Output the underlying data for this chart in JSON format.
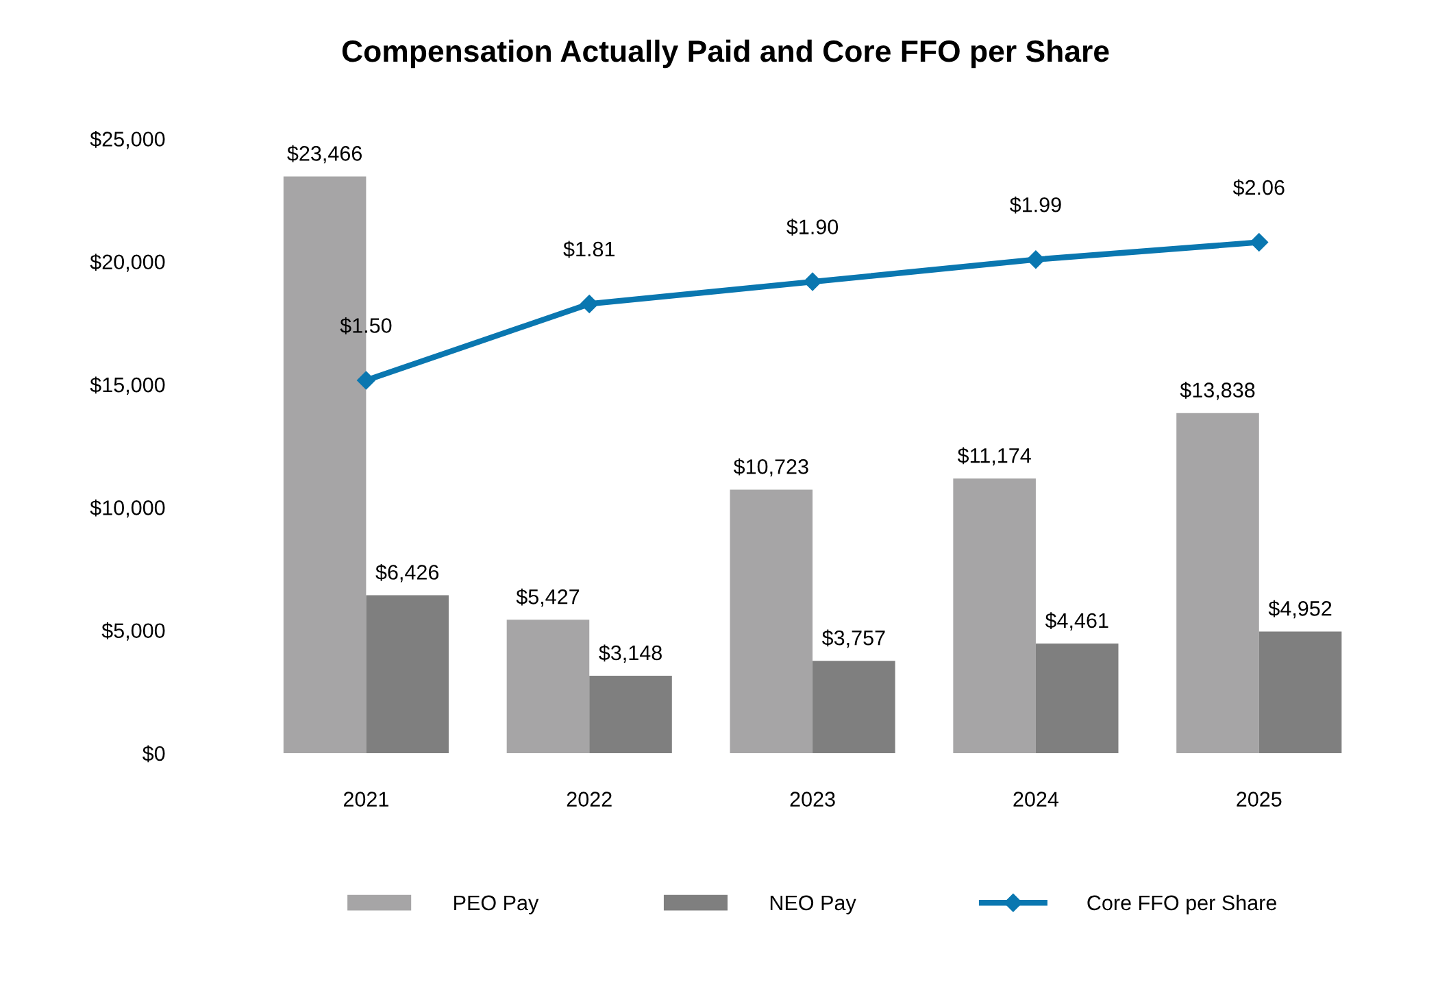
{
  "chart_data": {
    "type": "bar",
    "title": "Compensation Actually Paid and Core FFO per Share",
    "categories": [
      "2021",
      "2022",
      "2023",
      "2024",
      "2025"
    ],
    "series": [
      {
        "name": "PEO Pay",
        "color": "#a6a5a6",
        "values": [
          23466,
          5427,
          10723,
          11174,
          13838
        ],
        "value_labels": [
          "$23,466",
          "$5,427",
          "$10,723",
          "$11,174",
          "$13,838"
        ]
      },
      {
        "name": "NEO Pay",
        "color": "#7f7f7f",
        "values": [
          6426,
          3148,
          3757,
          4461,
          4952
        ],
        "value_labels": [
          "$6,426",
          "$3,148",
          "$3,757",
          "$4,461",
          "$4,952"
        ]
      },
      {
        "name": "Core FFO per Share",
        "type": "line",
        "axis": "y2",
        "color": "#0a77b0",
        "marker": "diamond",
        "values": [
          1.5,
          1.81,
          1.9,
          1.99,
          2.06
        ],
        "value_labels": [
          "$1.50",
          "$1.81",
          "$1.90",
          "$1.99",
          "$2.06"
        ]
      }
    ],
    "ylim": [
      0,
      25000
    ],
    "yticks": [
      {
        "value": 0,
        "label": "$0"
      },
      {
        "value": 5000,
        "label": "$5,000"
      },
      {
        "value": 10000,
        "label": "$10,000"
      },
      {
        "value": 15000,
        "label": "$15,000"
      },
      {
        "value": 20000,
        "label": "$20,000"
      },
      {
        "value": 25000,
        "label": "$25,000"
      }
    ],
    "tick_labels": "xy",
    "grid": false,
    "legend": "bottom"
  }
}
